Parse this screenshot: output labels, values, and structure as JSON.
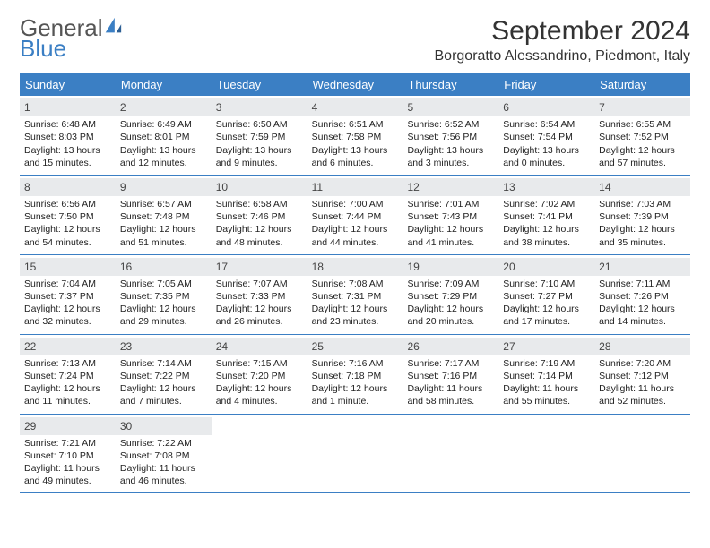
{
  "logo": {
    "text_general": "General",
    "text_blue": "Blue"
  },
  "header": {
    "month_title": "September 2024",
    "location": "Borgoratto Alessandrino, Piedmont, Italy"
  },
  "colors": {
    "header_bg": "#3b7fc4",
    "header_text": "#ffffff",
    "daynum_bg": "#e8eaec",
    "border": "#3b7fc4",
    "body_text": "#222222"
  },
  "day_headers": [
    "Sunday",
    "Monday",
    "Tuesday",
    "Wednesday",
    "Thursday",
    "Friday",
    "Saturday"
  ],
  "weeks": [
    [
      {
        "n": "1",
        "sr": "Sunrise: 6:48 AM",
        "ss": "Sunset: 8:03 PM",
        "dl": "Daylight: 13 hours and 15 minutes."
      },
      {
        "n": "2",
        "sr": "Sunrise: 6:49 AM",
        "ss": "Sunset: 8:01 PM",
        "dl": "Daylight: 13 hours and 12 minutes."
      },
      {
        "n": "3",
        "sr": "Sunrise: 6:50 AM",
        "ss": "Sunset: 7:59 PM",
        "dl": "Daylight: 13 hours and 9 minutes."
      },
      {
        "n": "4",
        "sr": "Sunrise: 6:51 AM",
        "ss": "Sunset: 7:58 PM",
        "dl": "Daylight: 13 hours and 6 minutes."
      },
      {
        "n": "5",
        "sr": "Sunrise: 6:52 AM",
        "ss": "Sunset: 7:56 PM",
        "dl": "Daylight: 13 hours and 3 minutes."
      },
      {
        "n": "6",
        "sr": "Sunrise: 6:54 AM",
        "ss": "Sunset: 7:54 PM",
        "dl": "Daylight: 13 hours and 0 minutes."
      },
      {
        "n": "7",
        "sr": "Sunrise: 6:55 AM",
        "ss": "Sunset: 7:52 PM",
        "dl": "Daylight: 12 hours and 57 minutes."
      }
    ],
    [
      {
        "n": "8",
        "sr": "Sunrise: 6:56 AM",
        "ss": "Sunset: 7:50 PM",
        "dl": "Daylight: 12 hours and 54 minutes."
      },
      {
        "n": "9",
        "sr": "Sunrise: 6:57 AM",
        "ss": "Sunset: 7:48 PM",
        "dl": "Daylight: 12 hours and 51 minutes."
      },
      {
        "n": "10",
        "sr": "Sunrise: 6:58 AM",
        "ss": "Sunset: 7:46 PM",
        "dl": "Daylight: 12 hours and 48 minutes."
      },
      {
        "n": "11",
        "sr": "Sunrise: 7:00 AM",
        "ss": "Sunset: 7:44 PM",
        "dl": "Daylight: 12 hours and 44 minutes."
      },
      {
        "n": "12",
        "sr": "Sunrise: 7:01 AM",
        "ss": "Sunset: 7:43 PM",
        "dl": "Daylight: 12 hours and 41 minutes."
      },
      {
        "n": "13",
        "sr": "Sunrise: 7:02 AM",
        "ss": "Sunset: 7:41 PM",
        "dl": "Daylight: 12 hours and 38 minutes."
      },
      {
        "n": "14",
        "sr": "Sunrise: 7:03 AM",
        "ss": "Sunset: 7:39 PM",
        "dl": "Daylight: 12 hours and 35 minutes."
      }
    ],
    [
      {
        "n": "15",
        "sr": "Sunrise: 7:04 AM",
        "ss": "Sunset: 7:37 PM",
        "dl": "Daylight: 12 hours and 32 minutes."
      },
      {
        "n": "16",
        "sr": "Sunrise: 7:05 AM",
        "ss": "Sunset: 7:35 PM",
        "dl": "Daylight: 12 hours and 29 minutes."
      },
      {
        "n": "17",
        "sr": "Sunrise: 7:07 AM",
        "ss": "Sunset: 7:33 PM",
        "dl": "Daylight: 12 hours and 26 minutes."
      },
      {
        "n": "18",
        "sr": "Sunrise: 7:08 AM",
        "ss": "Sunset: 7:31 PM",
        "dl": "Daylight: 12 hours and 23 minutes."
      },
      {
        "n": "19",
        "sr": "Sunrise: 7:09 AM",
        "ss": "Sunset: 7:29 PM",
        "dl": "Daylight: 12 hours and 20 minutes."
      },
      {
        "n": "20",
        "sr": "Sunrise: 7:10 AM",
        "ss": "Sunset: 7:27 PM",
        "dl": "Daylight: 12 hours and 17 minutes."
      },
      {
        "n": "21",
        "sr": "Sunrise: 7:11 AM",
        "ss": "Sunset: 7:26 PM",
        "dl": "Daylight: 12 hours and 14 minutes."
      }
    ],
    [
      {
        "n": "22",
        "sr": "Sunrise: 7:13 AM",
        "ss": "Sunset: 7:24 PM",
        "dl": "Daylight: 12 hours and 11 minutes."
      },
      {
        "n": "23",
        "sr": "Sunrise: 7:14 AM",
        "ss": "Sunset: 7:22 PM",
        "dl": "Daylight: 12 hours and 7 minutes."
      },
      {
        "n": "24",
        "sr": "Sunrise: 7:15 AM",
        "ss": "Sunset: 7:20 PM",
        "dl": "Daylight: 12 hours and 4 minutes."
      },
      {
        "n": "25",
        "sr": "Sunrise: 7:16 AM",
        "ss": "Sunset: 7:18 PM",
        "dl": "Daylight: 12 hours and 1 minute."
      },
      {
        "n": "26",
        "sr": "Sunrise: 7:17 AM",
        "ss": "Sunset: 7:16 PM",
        "dl": "Daylight: 11 hours and 58 minutes."
      },
      {
        "n": "27",
        "sr": "Sunrise: 7:19 AM",
        "ss": "Sunset: 7:14 PM",
        "dl": "Daylight: 11 hours and 55 minutes."
      },
      {
        "n": "28",
        "sr": "Sunrise: 7:20 AM",
        "ss": "Sunset: 7:12 PM",
        "dl": "Daylight: 11 hours and 52 minutes."
      }
    ],
    [
      {
        "n": "29",
        "sr": "Sunrise: 7:21 AM",
        "ss": "Sunset: 7:10 PM",
        "dl": "Daylight: 11 hours and 49 minutes."
      },
      {
        "n": "30",
        "sr": "Sunrise: 7:22 AM",
        "ss": "Sunset: 7:08 PM",
        "dl": "Daylight: 11 hours and 46 minutes."
      },
      null,
      null,
      null,
      null,
      null
    ]
  ]
}
